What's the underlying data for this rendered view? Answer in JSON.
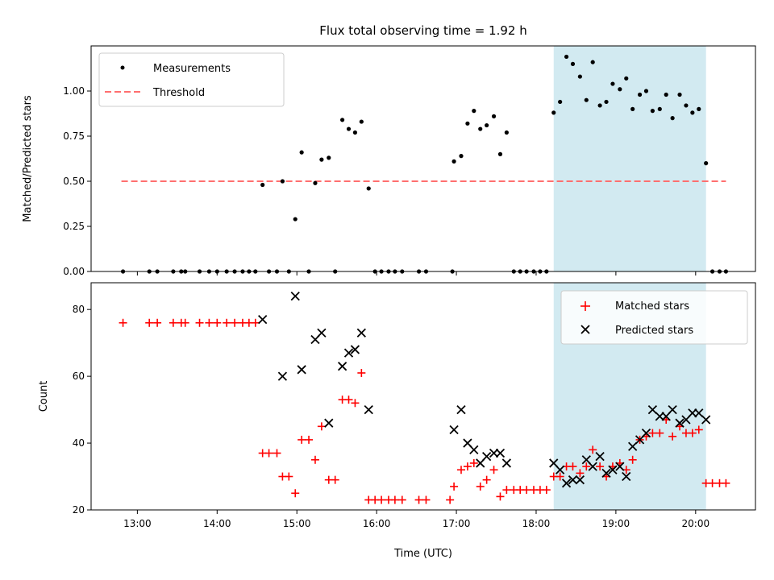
{
  "colors": {
    "measurements": "#000000",
    "threshold": "#ff6f6f",
    "matched": "#ff0000",
    "predicted": "#000000",
    "highlight": "#add8e6"
  },
  "chart_data": [
    {
      "type": "scatter",
      "title": "Flux total observing time = 1.92 h",
      "xlabel": "",
      "ylabel": "Matched/Predicted stars",
      "xlim": [
        12.42,
        20.75
      ],
      "ylim": [
        0,
        1.25
      ],
      "yticks": [
        0.0,
        0.25,
        0.5,
        0.75,
        1.0
      ],
      "ytick_labels": [
        "0.00",
        "0.25",
        "0.50",
        "0.75",
        "1.00"
      ],
      "xticks": [
        13,
        14,
        15,
        16,
        17,
        18,
        19,
        20
      ],
      "highlight_span": [
        18.22,
        20.13
      ],
      "threshold": {
        "name": "Threshold",
        "value": 0.5,
        "x_range": [
          12.8,
          20.38
        ]
      },
      "legend": [
        "Measurements",
        "Threshold"
      ],
      "legend_position": "top-left",
      "series": [
        {
          "name": "Measurements",
          "points": [
            [
              12.82,
              0
            ],
            [
              13.15,
              0
            ],
            [
              13.25,
              0
            ],
            [
              13.45,
              0
            ],
            [
              13.55,
              0
            ],
            [
              13.6,
              0
            ],
            [
              13.78,
              0
            ],
            [
              13.9,
              0
            ],
            [
              14.0,
              0
            ],
            [
              14.12,
              0
            ],
            [
              14.22,
              0
            ],
            [
              14.32,
              0
            ],
            [
              14.4,
              0
            ],
            [
              14.48,
              0
            ],
            [
              14.57,
              0.48
            ],
            [
              14.65,
              0
            ],
            [
              14.75,
              0
            ],
            [
              14.82,
              0.5
            ],
            [
              14.9,
              0
            ],
            [
              14.98,
              0.29
            ],
            [
              15.06,
              0.66
            ],
            [
              15.15,
              0
            ],
            [
              15.23,
              0.49
            ],
            [
              15.31,
              0.62
            ],
            [
              15.4,
              0.63
            ],
            [
              15.48,
              0
            ],
            [
              15.57,
              0.84
            ],
            [
              15.65,
              0.79
            ],
            [
              15.73,
              0.77
            ],
            [
              15.81,
              0.83
            ],
            [
              15.9,
              0.46
            ],
            [
              15.98,
              0
            ],
            [
              16.06,
              0
            ],
            [
              16.15,
              0
            ],
            [
              16.23,
              0
            ],
            [
              16.32,
              0
            ],
            [
              16.53,
              0
            ],
            [
              16.62,
              0
            ],
            [
              16.95,
              0
            ],
            [
              16.97,
              0.61
            ],
            [
              17.06,
              0.64
            ],
            [
              17.14,
              0.82
            ],
            [
              17.22,
              0.89
            ],
            [
              17.3,
              0.79
            ],
            [
              17.38,
              0.81
            ],
            [
              17.47,
              0.86
            ],
            [
              17.55,
              0.65
            ],
            [
              17.63,
              0.77
            ],
            [
              17.72,
              0
            ],
            [
              17.8,
              0
            ],
            [
              17.88,
              0
            ],
            [
              17.97,
              0
            ],
            [
              18.05,
              0
            ],
            [
              18.13,
              0
            ],
            [
              18.22,
              0.88
            ],
            [
              18.3,
              0.94
            ],
            [
              18.38,
              1.19
            ],
            [
              18.46,
              1.15
            ],
            [
              18.55,
              1.08
            ],
            [
              18.63,
              0.95
            ],
            [
              18.71,
              1.16
            ],
            [
              18.8,
              0.92
            ],
            [
              18.88,
              0.94
            ],
            [
              18.96,
              1.04
            ],
            [
              19.05,
              1.01
            ],
            [
              19.13,
              1.07
            ],
            [
              19.21,
              0.9
            ],
            [
              19.3,
              0.98
            ],
            [
              19.38,
              1.0
            ],
            [
              19.46,
              0.89
            ],
            [
              19.55,
              0.9
            ],
            [
              19.63,
              0.98
            ],
            [
              19.71,
              0.85
            ],
            [
              19.8,
              0.98
            ],
            [
              19.88,
              0.92
            ],
            [
              19.96,
              0.88
            ],
            [
              20.04,
              0.9
            ],
            [
              20.13,
              0.6
            ],
            [
              20.21,
              0
            ],
            [
              20.3,
              0
            ],
            [
              20.38,
              0
            ]
          ]
        }
      ]
    },
    {
      "type": "scatter",
      "title": "",
      "xlabel": "Time (UTC)",
      "ylabel": "Count",
      "xlim": [
        12.42,
        20.75
      ],
      "ylim": [
        20,
        88
      ],
      "yticks": [
        20,
        40,
        60,
        80
      ],
      "ytick_labels": [
        "20",
        "40",
        "60",
        "80"
      ],
      "xticks": [
        13,
        14,
        15,
        16,
        17,
        18,
        19,
        20
      ],
      "xtick_labels": [
        "13:00",
        "14:00",
        "15:00",
        "16:00",
        "17:00",
        "18:00",
        "19:00",
        "20:00"
      ],
      "highlight_span": [
        18.22,
        20.13
      ],
      "legend": [
        "Matched stars",
        "Predicted stars"
      ],
      "legend_position": "top-right",
      "series": [
        {
          "name": "Matched stars",
          "marker": "+",
          "points": [
            [
              12.82,
              76
            ],
            [
              13.15,
              76
            ],
            [
              13.25,
              76
            ],
            [
              13.45,
              76
            ],
            [
              13.55,
              76
            ],
            [
              13.6,
              76
            ],
            [
              13.78,
              76
            ],
            [
              13.9,
              76
            ],
            [
              14.0,
              76
            ],
            [
              14.12,
              76
            ],
            [
              14.22,
              76
            ],
            [
              14.32,
              76
            ],
            [
              14.4,
              76
            ],
            [
              14.48,
              76
            ],
            [
              14.57,
              37
            ],
            [
              14.65,
              37
            ],
            [
              14.75,
              37
            ],
            [
              14.82,
              30
            ],
            [
              14.9,
              30
            ],
            [
              14.98,
              25
            ],
            [
              15.06,
              41
            ],
            [
              15.15,
              41
            ],
            [
              15.23,
              35
            ],
            [
              15.31,
              45
            ],
            [
              15.4,
              29
            ],
            [
              15.48,
              29
            ],
            [
              15.57,
              53
            ],
            [
              15.65,
              53
            ],
            [
              15.73,
              52
            ],
            [
              15.81,
              61
            ],
            [
              15.9,
              23
            ],
            [
              15.98,
              23
            ],
            [
              16.06,
              23
            ],
            [
              16.15,
              23
            ],
            [
              16.23,
              23
            ],
            [
              16.32,
              23
            ],
            [
              16.53,
              23
            ],
            [
              16.62,
              23
            ],
            [
              16.92,
              23
            ],
            [
              16.97,
              27
            ],
            [
              17.06,
              32
            ],
            [
              17.14,
              33
            ],
            [
              17.22,
              34
            ],
            [
              17.3,
              27
            ],
            [
              17.38,
              29
            ],
            [
              17.47,
              32
            ],
            [
              17.55,
              24
            ],
            [
              17.63,
              26
            ],
            [
              17.72,
              26
            ],
            [
              17.8,
              26
            ],
            [
              17.88,
              26
            ],
            [
              17.97,
              26
            ],
            [
              18.05,
              26
            ],
            [
              18.13,
              26
            ],
            [
              18.22,
              30
            ],
            [
              18.3,
              30
            ],
            [
              18.38,
              33
            ],
            [
              18.46,
              33
            ],
            [
              18.55,
              31
            ],
            [
              18.63,
              33
            ],
            [
              18.71,
              38
            ],
            [
              18.8,
              33
            ],
            [
              18.88,
              30
            ],
            [
              18.96,
              33
            ],
            [
              19.05,
              34
            ],
            [
              19.13,
              32
            ],
            [
              19.21,
              35
            ],
            [
              19.3,
              41
            ],
            [
              19.38,
              42
            ],
            [
              19.46,
              43
            ],
            [
              19.55,
              43
            ],
            [
              19.63,
              47
            ],
            [
              19.71,
              42
            ],
            [
              19.8,
              45
            ],
            [
              19.88,
              43
            ],
            [
              19.96,
              43
            ],
            [
              20.04,
              44
            ],
            [
              20.13,
              28
            ],
            [
              20.21,
              28
            ],
            [
              20.3,
              28
            ],
            [
              20.38,
              28
            ]
          ]
        },
        {
          "name": "Predicted stars",
          "marker": "x",
          "points": [
            [
              14.57,
              77
            ],
            [
              14.82,
              60
            ],
            [
              14.98,
              84
            ],
            [
              15.06,
              62
            ],
            [
              15.23,
              71
            ],
            [
              15.31,
              73
            ],
            [
              15.4,
              46
            ],
            [
              15.57,
              63
            ],
            [
              15.65,
              67
            ],
            [
              15.73,
              68
            ],
            [
              15.81,
              73
            ],
            [
              15.9,
              50
            ],
            [
              16.97,
              44
            ],
            [
              17.06,
              50
            ],
            [
              17.14,
              40
            ],
            [
              17.22,
              38
            ],
            [
              17.3,
              34
            ],
            [
              17.38,
              36
            ],
            [
              17.47,
              37
            ],
            [
              17.55,
              37
            ],
            [
              17.63,
              34
            ],
            [
              18.22,
              34
            ],
            [
              18.3,
              32
            ],
            [
              18.38,
              28
            ],
            [
              18.46,
              29
            ],
            [
              18.55,
              29
            ],
            [
              18.63,
              35
            ],
            [
              18.71,
              33
            ],
            [
              18.8,
              36
            ],
            [
              18.88,
              31
            ],
            [
              18.96,
              32
            ],
            [
              19.05,
              33
            ],
            [
              19.13,
              30
            ],
            [
              19.21,
              39
            ],
            [
              19.3,
              41
            ],
            [
              19.38,
              43
            ],
            [
              19.46,
              50
            ],
            [
              19.55,
              48
            ],
            [
              19.63,
              48
            ],
            [
              19.71,
              50
            ],
            [
              19.8,
              46
            ],
            [
              19.88,
              47
            ],
            [
              19.96,
              49
            ],
            [
              20.04,
              49
            ],
            [
              20.13,
              47
            ]
          ]
        }
      ]
    }
  ]
}
